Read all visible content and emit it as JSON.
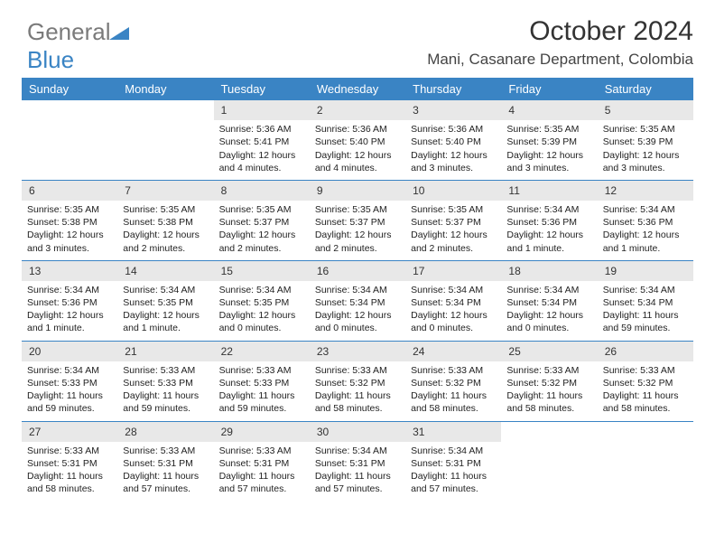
{
  "logo": {
    "text1": "General",
    "text2": "Blue",
    "brand_color": "#3a84c4",
    "gray_color": "#7a7a7a"
  },
  "header": {
    "month_title": "October 2024",
    "location": "Mani, Casanare Department, Colombia"
  },
  "colors": {
    "header_bg": "#3a84c4",
    "daynum_bg": "#e8e8e8",
    "text": "#222222",
    "page_bg": "#ffffff"
  },
  "day_names": [
    "Sunday",
    "Monday",
    "Tuesday",
    "Wednesday",
    "Thursday",
    "Friday",
    "Saturday"
  ],
  "weeks": [
    [
      null,
      null,
      {
        "n": "1",
        "sr": "Sunrise: 5:36 AM",
        "ss": "Sunset: 5:41 PM",
        "dl": "Daylight: 12 hours and 4 minutes."
      },
      {
        "n": "2",
        "sr": "Sunrise: 5:36 AM",
        "ss": "Sunset: 5:40 PM",
        "dl": "Daylight: 12 hours and 4 minutes."
      },
      {
        "n": "3",
        "sr": "Sunrise: 5:36 AM",
        "ss": "Sunset: 5:40 PM",
        "dl": "Daylight: 12 hours and 3 minutes."
      },
      {
        "n": "4",
        "sr": "Sunrise: 5:35 AM",
        "ss": "Sunset: 5:39 PM",
        "dl": "Daylight: 12 hours and 3 minutes."
      },
      {
        "n": "5",
        "sr": "Sunrise: 5:35 AM",
        "ss": "Sunset: 5:39 PM",
        "dl": "Daylight: 12 hours and 3 minutes."
      }
    ],
    [
      {
        "n": "6",
        "sr": "Sunrise: 5:35 AM",
        "ss": "Sunset: 5:38 PM",
        "dl": "Daylight: 12 hours and 3 minutes."
      },
      {
        "n": "7",
        "sr": "Sunrise: 5:35 AM",
        "ss": "Sunset: 5:38 PM",
        "dl": "Daylight: 12 hours and 2 minutes."
      },
      {
        "n": "8",
        "sr": "Sunrise: 5:35 AM",
        "ss": "Sunset: 5:37 PM",
        "dl": "Daylight: 12 hours and 2 minutes."
      },
      {
        "n": "9",
        "sr": "Sunrise: 5:35 AM",
        "ss": "Sunset: 5:37 PM",
        "dl": "Daylight: 12 hours and 2 minutes."
      },
      {
        "n": "10",
        "sr": "Sunrise: 5:35 AM",
        "ss": "Sunset: 5:37 PM",
        "dl": "Daylight: 12 hours and 2 minutes."
      },
      {
        "n": "11",
        "sr": "Sunrise: 5:34 AM",
        "ss": "Sunset: 5:36 PM",
        "dl": "Daylight: 12 hours and 1 minute."
      },
      {
        "n": "12",
        "sr": "Sunrise: 5:34 AM",
        "ss": "Sunset: 5:36 PM",
        "dl": "Daylight: 12 hours and 1 minute."
      }
    ],
    [
      {
        "n": "13",
        "sr": "Sunrise: 5:34 AM",
        "ss": "Sunset: 5:36 PM",
        "dl": "Daylight: 12 hours and 1 minute."
      },
      {
        "n": "14",
        "sr": "Sunrise: 5:34 AM",
        "ss": "Sunset: 5:35 PM",
        "dl": "Daylight: 12 hours and 1 minute."
      },
      {
        "n": "15",
        "sr": "Sunrise: 5:34 AM",
        "ss": "Sunset: 5:35 PM",
        "dl": "Daylight: 12 hours and 0 minutes."
      },
      {
        "n": "16",
        "sr": "Sunrise: 5:34 AM",
        "ss": "Sunset: 5:34 PM",
        "dl": "Daylight: 12 hours and 0 minutes."
      },
      {
        "n": "17",
        "sr": "Sunrise: 5:34 AM",
        "ss": "Sunset: 5:34 PM",
        "dl": "Daylight: 12 hours and 0 minutes."
      },
      {
        "n": "18",
        "sr": "Sunrise: 5:34 AM",
        "ss": "Sunset: 5:34 PM",
        "dl": "Daylight: 12 hours and 0 minutes."
      },
      {
        "n": "19",
        "sr": "Sunrise: 5:34 AM",
        "ss": "Sunset: 5:34 PM",
        "dl": "Daylight: 11 hours and 59 minutes."
      }
    ],
    [
      {
        "n": "20",
        "sr": "Sunrise: 5:34 AM",
        "ss": "Sunset: 5:33 PM",
        "dl": "Daylight: 11 hours and 59 minutes."
      },
      {
        "n": "21",
        "sr": "Sunrise: 5:33 AM",
        "ss": "Sunset: 5:33 PM",
        "dl": "Daylight: 11 hours and 59 minutes."
      },
      {
        "n": "22",
        "sr": "Sunrise: 5:33 AM",
        "ss": "Sunset: 5:33 PM",
        "dl": "Daylight: 11 hours and 59 minutes."
      },
      {
        "n": "23",
        "sr": "Sunrise: 5:33 AM",
        "ss": "Sunset: 5:32 PM",
        "dl": "Daylight: 11 hours and 58 minutes."
      },
      {
        "n": "24",
        "sr": "Sunrise: 5:33 AM",
        "ss": "Sunset: 5:32 PM",
        "dl": "Daylight: 11 hours and 58 minutes."
      },
      {
        "n": "25",
        "sr": "Sunrise: 5:33 AM",
        "ss": "Sunset: 5:32 PM",
        "dl": "Daylight: 11 hours and 58 minutes."
      },
      {
        "n": "26",
        "sr": "Sunrise: 5:33 AM",
        "ss": "Sunset: 5:32 PM",
        "dl": "Daylight: 11 hours and 58 minutes."
      }
    ],
    [
      {
        "n": "27",
        "sr": "Sunrise: 5:33 AM",
        "ss": "Sunset: 5:31 PM",
        "dl": "Daylight: 11 hours and 58 minutes."
      },
      {
        "n": "28",
        "sr": "Sunrise: 5:33 AM",
        "ss": "Sunset: 5:31 PM",
        "dl": "Daylight: 11 hours and 57 minutes."
      },
      {
        "n": "29",
        "sr": "Sunrise: 5:33 AM",
        "ss": "Sunset: 5:31 PM",
        "dl": "Daylight: 11 hours and 57 minutes."
      },
      {
        "n": "30",
        "sr": "Sunrise: 5:34 AM",
        "ss": "Sunset: 5:31 PM",
        "dl": "Daylight: 11 hours and 57 minutes."
      },
      {
        "n": "31",
        "sr": "Sunrise: 5:34 AM",
        "ss": "Sunset: 5:31 PM",
        "dl": "Daylight: 11 hours and 57 minutes."
      },
      null,
      null
    ]
  ]
}
